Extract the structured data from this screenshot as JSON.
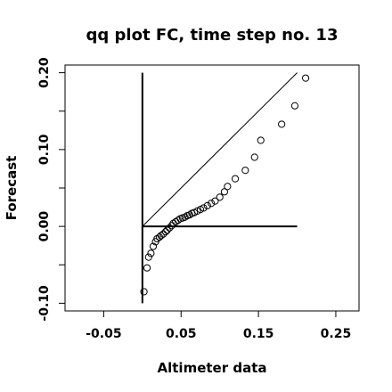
{
  "chart_data": {
    "type": "scatter",
    "title": "qq plot FC, time step no. 13",
    "xlabel": "Altimeter data",
    "ylabel": "Forecast",
    "xlim": [
      -0.1,
      0.28
    ],
    "ylim": [
      -0.11,
      0.21
    ],
    "x_ticks": [
      {
        "value": -0.05,
        "label": "-0.05"
      },
      {
        "value": 0.05,
        "label": "0.05"
      },
      {
        "value": 0.15,
        "label": "0.15"
      },
      {
        "value": 0.25,
        "label": "0.25"
      }
    ],
    "y_ticks": [
      {
        "value": -0.1,
        "label": "-0.10"
      },
      {
        "value": 0.0,
        "label": "0.00"
      },
      {
        "value": 0.1,
        "label": "0.10"
      },
      {
        "value": 0.2,
        "label": "0.20"
      }
    ],
    "reference_lines": [
      {
        "kind": "identity",
        "x": [
          0.0,
          0.2
        ],
        "y": [
          0.0,
          0.2
        ]
      },
      {
        "kind": "vertical",
        "x": [
          0.0,
          0.0
        ],
        "y": [
          -0.1,
          0.2
        ]
      },
      {
        "kind": "horizontal",
        "x": [
          0.0,
          0.2
        ],
        "y": [
          0.0,
          0.0
        ]
      }
    ],
    "x": [
      0.002,
      0.006,
      0.008,
      0.011,
      0.014,
      0.017,
      0.019,
      0.022,
      0.024,
      0.027,
      0.03,
      0.032,
      0.035,
      0.038,
      0.04,
      0.043,
      0.046,
      0.049,
      0.052,
      0.055,
      0.058,
      0.061,
      0.064,
      0.067,
      0.071,
      0.075,
      0.079,
      0.084,
      0.089,
      0.094,
      0.1,
      0.106,
      0.11,
      0.12,
      0.133,
      0.145,
      0.153,
      0.18,
      0.197,
      0.211
    ],
    "y": [
      -0.085,
      -0.054,
      -0.04,
      -0.035,
      -0.026,
      -0.02,
      -0.016,
      -0.014,
      -0.012,
      -0.01,
      -0.007,
      -0.005,
      -0.002,
      0.001,
      0.004,
      0.006,
      0.008,
      0.01,
      0.011,
      0.012,
      0.014,
      0.015,
      0.017,
      0.018,
      0.02,
      0.022,
      0.024,
      0.027,
      0.03,
      0.033,
      0.038,
      0.045,
      0.052,
      0.062,
      0.073,
      0.09,
      0.112,
      0.133,
      0.157,
      0.193
    ]
  }
}
